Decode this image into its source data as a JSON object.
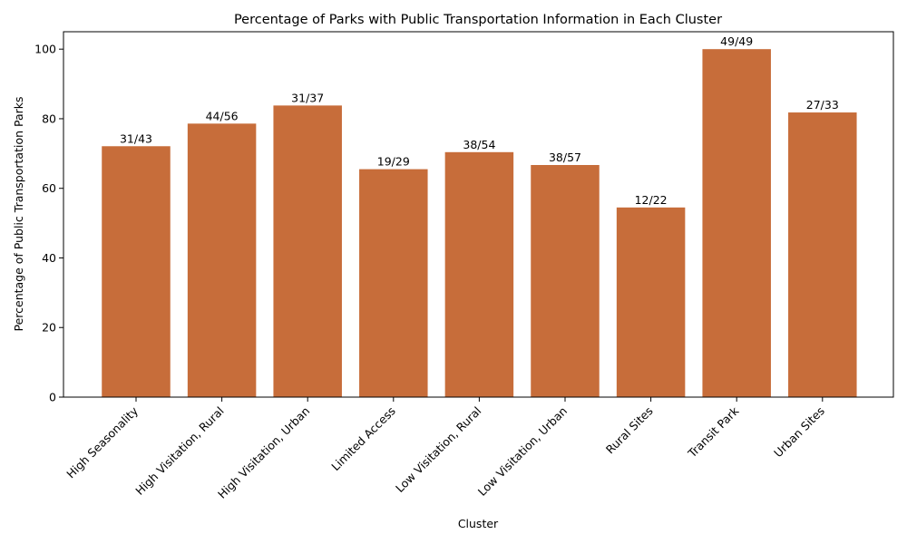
{
  "colors": {
    "bar": "#c76d3a",
    "axis": "#000000",
    "background": "#ffffff"
  },
  "chart_data": {
    "type": "bar",
    "title": "Percentage of Parks with Public Transportation Information in Each Cluster",
    "xlabel": "Cluster",
    "ylabel": "Percentage of Public Transportation Parks",
    "categories": [
      "High Seasonality",
      "High Visitation, Rural",
      "High Visitation, Urban",
      "Limited Access",
      "Low Visitation, Rural",
      "Low Visitation, Urban",
      "Rural Sites",
      "Transit Park",
      "Urban Sites"
    ],
    "values": [
      72.1,
      78.6,
      83.8,
      65.5,
      70.4,
      66.7,
      54.5,
      100.0,
      81.8
    ],
    "bar_labels": [
      "31/43",
      "44/56",
      "31/37",
      "19/29",
      "38/54",
      "38/57",
      "12/22",
      "49/49",
      "27/33"
    ],
    "ylim": [
      0,
      105
    ],
    "yticks": [
      0,
      20,
      40,
      60,
      80,
      100
    ],
    "grid": false,
    "legend": null
  }
}
